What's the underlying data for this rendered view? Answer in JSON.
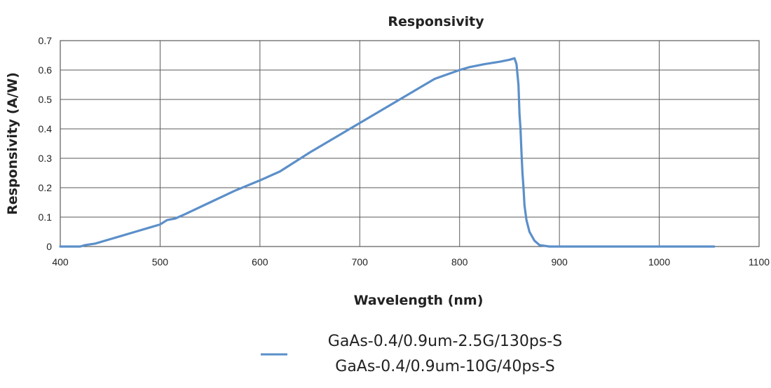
{
  "chart_data": {
    "type": "line",
    "title": "Responsivity",
    "xlabel": "Wavelength (nm)",
    "ylabel": "Responsivity (A/W)",
    "xlim": [
      400,
      1100
    ],
    "ylim": [
      0,
      0.7
    ],
    "xticks": [
      "400",
      "500",
      "600",
      "700",
      "800",
      "900",
      "1000",
      "1100"
    ],
    "yticks": [
      "0",
      "0.1",
      "0.2",
      "0.3",
      "0.4",
      "0.5",
      "0.6",
      "0.7"
    ],
    "grid": true,
    "legend_position": "bottom",
    "series": [
      {
        "name": "GaAs-0.4/0.9um-2.5G/130ps-S",
        "name_line2": "GaAs-0.4/0.9um-10G/40ps-S",
        "color": "#5b8fc9",
        "x": [
          400,
          410,
          420,
          425,
          435,
          450,
          460,
          475,
          490,
          500,
          507,
          515,
          525,
          550,
          575,
          600,
          620,
          650,
          675,
          700,
          725,
          750,
          775,
          800,
          810,
          825,
          840,
          850,
          855,
          857,
          859,
          860,
          861,
          862,
          863,
          864,
          865,
          867,
          870,
          875,
          880,
          890,
          900,
          950,
          1000,
          1030,
          1040,
          1055
        ],
        "y": [
          0.0,
          0.0,
          0.0,
          0.005,
          0.01,
          0.025,
          0.035,
          0.05,
          0.065,
          0.075,
          0.09,
          0.095,
          0.11,
          0.15,
          0.19,
          0.225,
          0.255,
          0.32,
          0.37,
          0.42,
          0.47,
          0.52,
          0.57,
          0.6,
          0.61,
          0.62,
          0.628,
          0.635,
          0.64,
          0.62,
          0.55,
          0.45,
          0.4,
          0.32,
          0.25,
          0.2,
          0.14,
          0.09,
          0.05,
          0.02,
          0.005,
          0.0,
          0.0,
          0.0,
          0.0,
          0.0,
          0.0,
          0.0
        ]
      }
    ]
  }
}
